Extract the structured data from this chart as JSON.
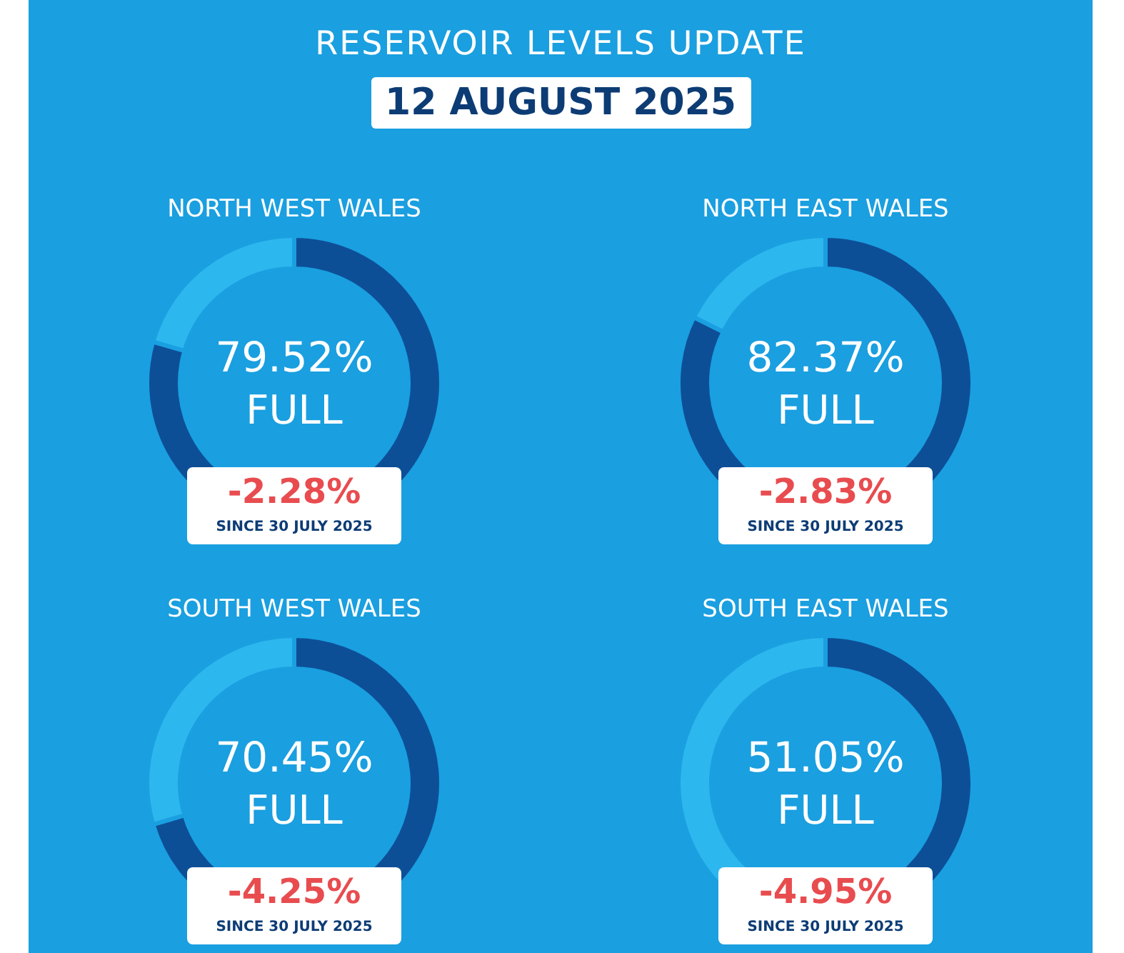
{
  "chart_data": [
    {
      "type": "other",
      "title": "RESERVOIR LEVELS UPDATE",
      "subtitle": "12 AUGUST 2025"
    },
    {
      "type": "donut",
      "title": "NORTH WEST WALES",
      "categories": [
        null,
        null
      ],
      "values": [
        79.52,
        20.48
      ],
      "colors": [
        "#0d4f97",
        "#2cb7ef"
      ],
      "value_labels": [
        "79.52%",
        null
      ],
      "annotations": [
        "FULL",
        "-2.28%",
        "SINCE 30 JULY 2025"
      ]
    },
    {
      "type": "donut",
      "title": "NORTH EAST WALES",
      "categories": [
        null,
        null
      ],
      "values": [
        82.37,
        17.63
      ],
      "colors": [
        "#0d4f97",
        "#2cb7ef"
      ],
      "value_labels": [
        "82.37%",
        null
      ],
      "annotations": [
        "FULL",
        "-2.83%",
        "SINCE 30 JULY 2025"
      ]
    },
    {
      "type": "donut",
      "title": "SOUTH WEST WALES",
      "categories": [
        null,
        null
      ],
      "values": [
        70.45,
        29.55
      ],
      "colors": [
        "#0d4f97",
        "#2cb7ef"
      ],
      "value_labels": [
        "70.45%",
        null
      ],
      "annotations": [
        "FULL",
        "-4.25%",
        "SINCE 30 JULY 2025"
      ]
    },
    {
      "type": "donut",
      "title": "SOUTH EAST WALES",
      "categories": [
        null,
        null
      ],
      "values": [
        51.05,
        48.95
      ],
      "colors": [
        "#0d4f97",
        "#2cb7ef"
      ],
      "value_labels": [
        "51.05%",
        null
      ],
      "annotations": [
        "FULL",
        "-4.95%",
        "SINCE 30 JULY 2025"
      ]
    }
  ]
}
